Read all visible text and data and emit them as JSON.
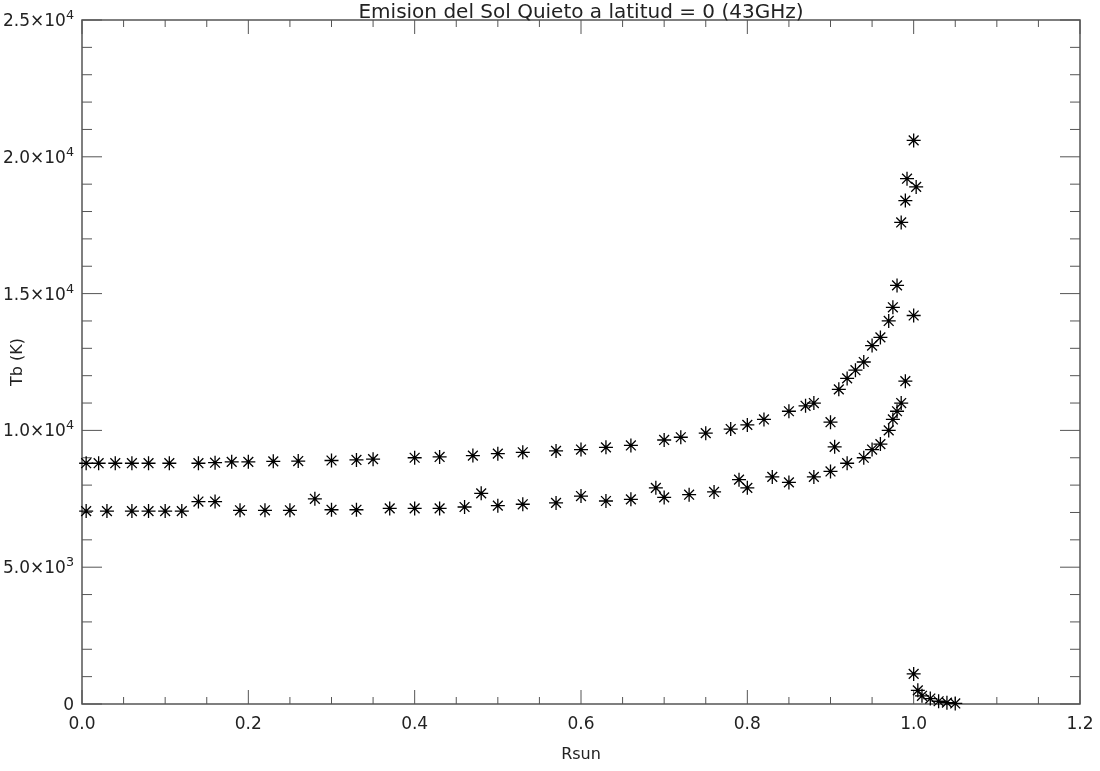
{
  "chart_data": {
    "type": "scatter",
    "title": "Emision del Sol Quieto a latitud = 0 (43GHz)",
    "xlabel": "Rsun",
    "ylabel": "Tb (K)",
    "marker": "cross",
    "grid": false,
    "xlim": [
      0,
      1.2
    ],
    "ylim": [
      0,
      25000
    ],
    "xticks": [
      {
        "value": 0,
        "label": "0.0"
      },
      {
        "value": 0.05,
        "label": null
      },
      {
        "value": 0.1,
        "label": null
      },
      {
        "value": 0.15,
        "label": null
      },
      {
        "value": 0.2,
        "label": "0.2"
      },
      {
        "value": 0.25,
        "label": null
      },
      {
        "value": 0.3,
        "label": null
      },
      {
        "value": 0.35,
        "label": null
      },
      {
        "value": 0.4,
        "label": "0.4"
      },
      {
        "value": 0.45,
        "label": null
      },
      {
        "value": 0.5,
        "label": null
      },
      {
        "value": 0.55,
        "label": null
      },
      {
        "value": 0.6,
        "label": "0.6"
      },
      {
        "value": 0.65,
        "label": null
      },
      {
        "value": 0.7,
        "label": null
      },
      {
        "value": 0.75,
        "label": null
      },
      {
        "value": 0.8,
        "label": "0.8"
      },
      {
        "value": 0.85,
        "label": null
      },
      {
        "value": 0.9,
        "label": null
      },
      {
        "value": 0.95,
        "label": null
      },
      {
        "value": 1,
        "label": "1.0"
      },
      {
        "value": 1.05,
        "label": null
      },
      {
        "value": 1.1,
        "label": null
      },
      {
        "value": 1.15,
        "label": null
      },
      {
        "value": 1.2,
        "label": "1.2"
      }
    ],
    "yticks": [
      {
        "value": 0,
        "label": "0"
      },
      {
        "value": 1000,
        "label": null
      },
      {
        "value": 2000,
        "label": null
      },
      {
        "value": 3000,
        "label": null
      },
      {
        "value": 4000,
        "label": null
      },
      {
        "value": 5000,
        "label": "5.0×10$^{3}$"
      },
      {
        "value": 6000,
        "label": null
      },
      {
        "value": 7000,
        "label": null
      },
      {
        "value": 8000,
        "label": null
      },
      {
        "value": 9000,
        "label": null
      },
      {
        "value": 10000,
        "label": "1.0×10$^{4}$"
      },
      {
        "value": 11000,
        "label": null
      },
      {
        "value": 12000,
        "label": null
      },
      {
        "value": 13000,
        "label": null
      },
      {
        "value": 14000,
        "label": null
      },
      {
        "value": 15000,
        "label": "1.5×10$^{4}$"
      },
      {
        "value": 16000,
        "label": null
      },
      {
        "value": 17000,
        "label": null
      },
      {
        "value": 18000,
        "label": null
      },
      {
        "value": 19000,
        "label": null
      },
      {
        "value": 20000,
        "label": "2.0×10$^{4}$"
      },
      {
        "value": 21000,
        "label": null
      },
      {
        "value": 22000,
        "label": null
      },
      {
        "value": 23000,
        "label": null
      },
      {
        "value": 24000,
        "label": null
      },
      {
        "value": 25000,
        "label": "2.5×10$^{4}$"
      }
    ],
    "series": [
      {
        "color": "#000000",
        "x": [
          0.005,
          0.02,
          0.04,
          0.06,
          0.08,
          0.105,
          0.14,
          0.16,
          0.18,
          0.2,
          0.23,
          0.26,
          0.3,
          0.33,
          0.35,
          0.4,
          0.43,
          0.47,
          0.5,
          0.53,
          0.57,
          0.6,
          0.63,
          0.66,
          0.7,
          0.72,
          0.75,
          0.78,
          0.8,
          0.82,
          0.85,
          0.87,
          0.88,
          0.9,
          0.905,
          0.91,
          0.92,
          0.93,
          0.94,
          0.95,
          0.96,
          0.97,
          0.975,
          0.98,
          0.985,
          0.99,
          0.992,
          1.0,
          1.003
        ],
        "values": [
          8800,
          8800,
          8800,
          8800,
          8800,
          8800,
          8800,
          8820,
          8850,
          8850,
          8870,
          8880,
          8900,
          8920,
          8950,
          9000,
          9030,
          9080,
          9150,
          9200,
          9250,
          9300,
          9380,
          9450,
          9650,
          9750,
          9900,
          10050,
          10200,
          10400,
          10700,
          10900,
          11000,
          10300,
          9400,
          11500,
          11900,
          12200,
          12500,
          13100,
          13400,
          14000,
          14500,
          15300,
          17600,
          18400,
          19200,
          20600,
          18900
        ]
      },
      {
        "color": "#000000",
        "x": [
          0.005,
          0.03,
          0.06,
          0.08,
          0.1,
          0.12,
          0.14,
          0.16,
          0.19,
          0.22,
          0.25,
          0.28,
          0.3,
          0.33,
          0.37,
          0.4,
          0.43,
          0.46,
          0.48,
          0.5,
          0.53,
          0.57,
          0.6,
          0.63,
          0.66,
          0.69,
          0.7,
          0.73,
          0.76,
          0.79,
          0.8,
          0.83,
          0.85,
          0.88,
          0.9,
          0.92,
          0.94,
          0.95,
          0.96,
          0.97,
          0.975,
          0.98,
          0.985,
          0.99,
          1.0,
          1.0,
          1.005,
          1.01,
          1.02,
          1.03,
          1.04,
          1.05
        ],
        "values": [
          7050,
          7050,
          7050,
          7050,
          7050,
          7050,
          7400,
          7400,
          7080,
          7080,
          7080,
          7500,
          7100,
          7100,
          7150,
          7150,
          7150,
          7200,
          7700,
          7250,
          7300,
          7350,
          7600,
          7420,
          7480,
          7900,
          7550,
          7650,
          7750,
          8200,
          7900,
          8300,
          8100,
          8300,
          8500,
          8800,
          9000,
          9300,
          9500,
          10000,
          10400,
          10700,
          11000,
          11800,
          14200,
          1100,
          500,
          300,
          200,
          100,
          50,
          20
        ]
      }
    ]
  }
}
